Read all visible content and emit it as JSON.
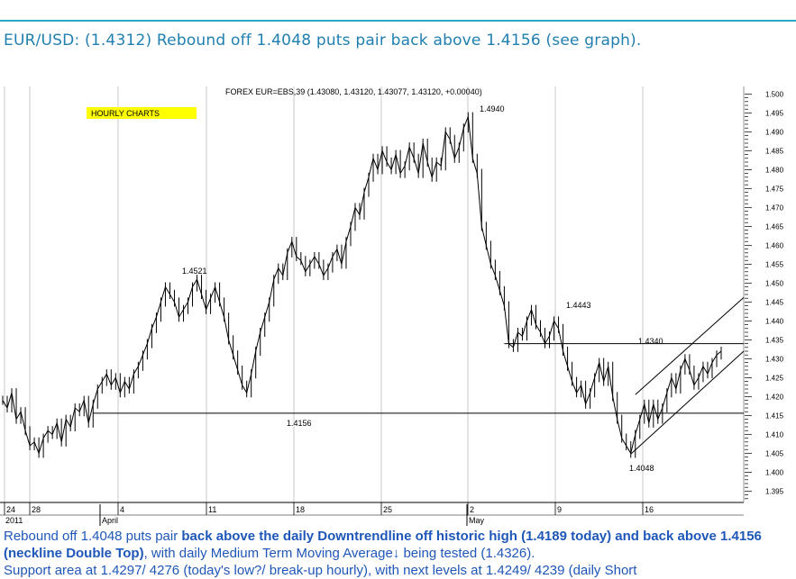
{
  "headline": "EUR/USD: (1.4312) Rebound off 1.4048 puts pair back above 1.4156 (see graph).",
  "chart_data": {
    "type": "line",
    "title": "FOREX EUR=EBS,39 (1.43080, 1.43120, 1.43077, 1.43120, +0.00040)",
    "badge": "HOURLY CHARTS",
    "ylim": [
      1.392,
      1.502
    ],
    "y_ticks": [
      "1.500",
      "1.495",
      "1.490",
      "1.485",
      "1.480",
      "1.475",
      "1.470",
      "1.465",
      "1.460",
      "1.455",
      "1.450",
      "1.445",
      "1.440",
      "1.435",
      "1.430",
      "1.425",
      "1.420",
      "1.415",
      "1.410",
      "1.405",
      "1.400",
      "1.395"
    ],
    "x_ticks": [
      "24",
      "28",
      "4",
      "11",
      "18",
      "25",
      "2",
      "9",
      "16"
    ],
    "x_month_labels": [
      "2011",
      "April",
      "May"
    ],
    "annotations": [
      "1.4521",
      "1.4156",
      "1.4940",
      "1.4443",
      "1.4340",
      "1.4048"
    ],
    "levels": {
      "neckline": 1.4156,
      "resistance": 1.434
    },
    "series": [
      {
        "values": [
          1.419,
          1.417,
          1.421,
          1.414,
          1.416,
          1.411,
          1.407,
          1.408,
          1.405,
          1.409,
          1.411,
          1.41,
          1.413,
          1.408,
          1.414,
          1.412,
          1.417,
          1.416,
          1.419,
          1.413,
          1.418,
          1.422,
          1.424,
          1.426,
          1.423,
          1.425,
          1.421,
          1.424,
          1.422,
          1.426,
          1.428,
          1.431,
          1.434,
          1.438,
          1.441,
          1.445,
          1.449,
          1.447,
          1.445,
          1.441,
          1.443,
          1.445,
          1.449,
          1.451,
          1.447,
          1.443,
          1.446,
          1.449,
          1.445,
          1.441,
          1.435,
          1.431,
          1.427,
          1.423,
          1.421,
          1.426,
          1.432,
          1.437,
          1.441,
          1.445,
          1.451,
          1.454,
          1.452,
          1.458,
          1.461,
          1.457,
          1.456,
          1.453,
          1.455,
          1.457,
          1.455,
          1.452,
          1.454,
          1.457,
          1.459,
          1.455,
          1.461,
          1.465,
          1.47,
          1.468,
          1.474,
          1.478,
          1.483,
          1.48,
          1.485,
          1.482,
          1.48,
          1.484,
          1.479,
          1.481,
          1.486,
          1.483,
          1.479,
          1.487,
          1.482,
          1.478,
          1.482,
          1.481,
          1.49,
          1.488,
          1.483,
          1.486,
          1.491,
          1.494,
          1.483,
          1.479,
          1.465,
          1.46,
          1.455,
          1.452,
          1.448,
          1.444,
          1.434,
          1.433,
          1.437,
          1.436,
          1.44,
          1.443,
          1.439,
          1.437,
          1.434,
          1.436,
          1.44,
          1.438,
          1.432,
          1.428,
          1.424,
          1.421,
          1.423,
          1.418,
          1.421,
          1.425,
          1.429,
          1.424,
          1.428,
          1.42,
          1.414,
          1.409,
          1.407,
          1.405,
          1.41,
          1.414,
          1.418,
          1.413,
          1.418,
          1.414,
          1.417,
          1.421,
          1.425,
          1.422,
          1.427,
          1.43,
          1.427,
          1.423,
          1.425,
          1.428,
          1.426,
          1.429,
          1.431,
          1.432
        ]
      }
    ]
  },
  "footer": {
    "p1": "Rebound off 1.4048 puts pair ",
    "b1": "back above the daily Downtrendline off historic high (1.4189 today) and  back above 1.4156 (neckline Double Top)",
    "p2": ", with daily Medium Term Moving Average↓ being tested (1.4326).",
    "line3": "Support area at 1.4297/ 4276 (today's low?/ break-up hourly), with next levels at 1.4249/ 4239 (daily Short"
  }
}
